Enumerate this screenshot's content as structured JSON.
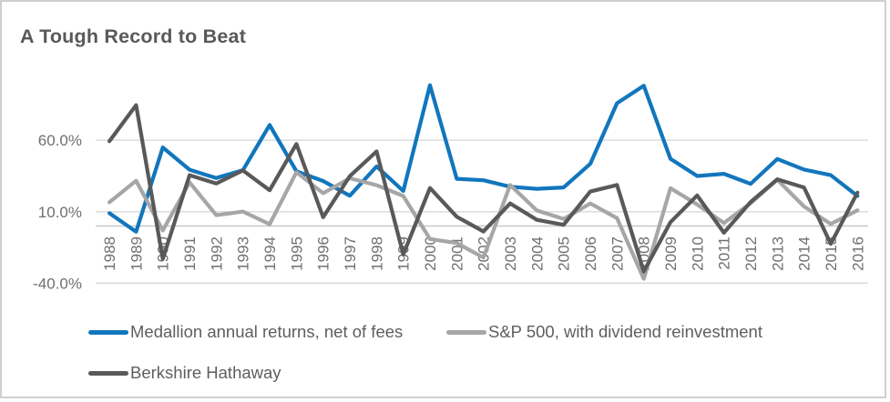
{
  "chart_data": {
    "type": "line",
    "title": "A Tough Record to Beat",
    "categories": [
      "1988",
      "1989",
      "1990",
      "1991",
      "1992",
      "1993",
      "1994",
      "1995",
      "1996",
      "1997",
      "1998",
      "1999",
      "2000",
      "2001",
      "2002",
      "2003",
      "2004",
      "2005",
      "2006",
      "2007",
      "2008",
      "2009",
      "2010",
      "2011",
      "2012",
      "2013",
      "2014",
      "2015",
      "2016"
    ],
    "series": [
      {
        "name": "Medallion annual returns, net of fees",
        "color": "#1276BD",
        "values": [
          9.0,
          -4.0,
          55.0,
          39.4,
          33.6,
          39.1,
          70.7,
          38.3,
          31.5,
          21.2,
          41.7,
          24.5,
          98.5,
          33.0,
          32.0,
          27.5,
          26.0,
          27.0,
          43.5,
          85.9,
          98.2,
          47.0,
          35.0,
          36.5,
          29.5,
          46.9,
          39.5,
          35.6,
          21.0
        ]
      },
      {
        "name": "S&P 500, with dividend reinvestment",
        "color": "#A6A6A6",
        "values": [
          16.6,
          31.7,
          -3.1,
          30.5,
          7.6,
          10.1,
          1.3,
          37.6,
          23.0,
          33.4,
          28.6,
          21.0,
          -9.1,
          -11.9,
          -22.1,
          28.7,
          10.9,
          4.9,
          15.8,
          5.5,
          -37.0,
          26.5,
          15.1,
          2.1,
          16.0,
          32.4,
          13.7,
          1.4,
          11.0
        ]
      },
      {
        "name": "Berkshire Hathaway",
        "color": "#595959",
        "values": [
          59.3,
          84.6,
          -23.1,
          35.6,
          29.8,
          38.9,
          25.0,
          57.4,
          6.2,
          34.9,
          52.2,
          -19.9,
          26.6,
          6.5,
          -3.8,
          15.8,
          4.3,
          0.8,
          24.1,
          28.7,
          -31.8,
          2.7,
          21.4,
          -4.7,
          16.8,
          32.7,
          27.0,
          -12.5,
          23.4
        ]
      }
    ],
    "y_axis": {
      "unit": "%",
      "ticks": [
        {
          "value": 60,
          "label": "60.0%"
        },
        {
          "value": 10,
          "label": "10.0%"
        },
        {
          "value": -40,
          "label": "-40.0%"
        }
      ],
      "zero_line_value": 0
    },
    "ylim": [
      -45,
      110
    ],
    "grid": true,
    "legend_position": "bottom"
  },
  "colors": {
    "title_text": "#595959",
    "axis_text": "#6F6F6F",
    "gridline": "#D9D9D9",
    "zero_axis_line": "#C8C8C8",
    "frame_border": "#CFCFCF",
    "background": "#FFFFFF"
  }
}
